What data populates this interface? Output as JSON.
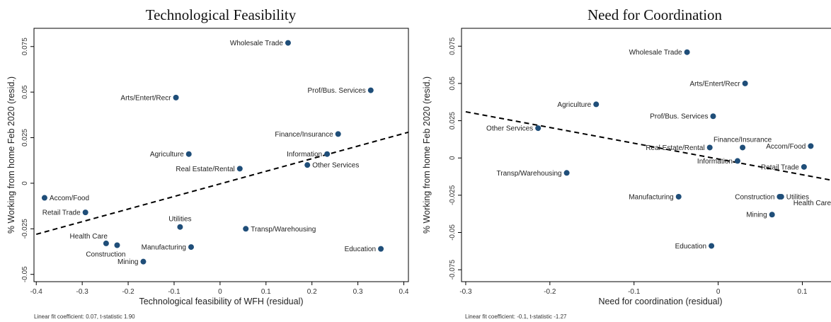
{
  "chart_data": [
    {
      "type": "scatter",
      "title": "Technological Feasibility",
      "xlabel": "Technological feasibility of WFH (residual)",
      "ylabel": "% Working from home Feb 2020 (resid.)",
      "xlim": [
        -0.405,
        0.41
      ],
      "ylim": [
        -0.054,
        0.085
      ],
      "xticks": [
        -0.4,
        -0.3,
        -0.2,
        -0.1,
        0,
        0.1,
        0.2,
        0.3,
        0.4
      ],
      "xtick_labels": [
        "-0.4",
        "-0.3",
        "-0.2",
        "-0.1",
        "0",
        "0.1",
        "0.2",
        "0.3",
        "0.4"
      ],
      "yticks": [
        -0.05,
        -0.025,
        0,
        0.025,
        0.05,
        0.075
      ],
      "ytick_labels": [
        "-0.05",
        "-0.025",
        "0",
        "0.025",
        "0.05",
        "0.075"
      ],
      "fit_line": {
        "x": [
          -0.4,
          0.41
        ],
        "y": [
          -0.028,
          0.028
        ]
      },
      "note": "Linear fit coefficient: 0.07, t-statistic 1.90",
      "points": [
        {
          "label": "Wholesale Trade",
          "x": 0.148,
          "y": 0.077,
          "pos": "left"
        },
        {
          "label": "Prof/Bus. Services",
          "x": 0.328,
          "y": 0.051,
          "pos": "left"
        },
        {
          "label": "Arts/Entert/Recr",
          "x": -0.096,
          "y": 0.047,
          "pos": "left"
        },
        {
          "label": "Finance/Insurance",
          "x": 0.257,
          "y": 0.027,
          "pos": "left"
        },
        {
          "label": "Agriculture",
          "x": -0.068,
          "y": 0.016,
          "pos": "left"
        },
        {
          "label": "Information",
          "x": 0.233,
          "y": 0.016,
          "pos": "left"
        },
        {
          "label": "Other Services",
          "x": 0.19,
          "y": 0.01,
          "pos": "right"
        },
        {
          "label": "Real Estate/Rental",
          "x": 0.043,
          "y": 0.008,
          "pos": "left"
        },
        {
          "label": "Accom/Food",
          "x": -0.382,
          "y": -0.008,
          "pos": "right"
        },
        {
          "label": "Retail Trade",
          "x": -0.293,
          "y": -0.016,
          "pos": "left"
        },
        {
          "label": "Utilities",
          "x": -0.087,
          "y": -0.024,
          "pos": "above"
        },
        {
          "label": "Transp/Warehousing",
          "x": 0.056,
          "y": -0.025,
          "pos": "right"
        },
        {
          "label": "Health Care",
          "x": -0.248,
          "y": -0.033,
          "pos": "above-left"
        },
        {
          "label": "Construction",
          "x": -0.224,
          "y": -0.034,
          "pos": "below-left"
        },
        {
          "label": "Manufacturing",
          "x": -0.063,
          "y": -0.035,
          "pos": "left"
        },
        {
          "label": "Education",
          "x": 0.35,
          "y": -0.036,
          "pos": "left"
        },
        {
          "label": "Mining",
          "x": -0.167,
          "y": -0.043,
          "pos": "left"
        }
      ]
    },
    {
      "type": "scatter",
      "title": "Need for Coordination",
      "xlabel": "Need for coordination (residual)",
      "ylabel": "% Working from home Feb 2020 (resid.)",
      "xlim": [
        -0.305,
        0.145
      ],
      "ylim": [
        -0.083,
        0.087
      ],
      "xticks": [
        -0.3,
        -0.2,
        -0.1,
        0,
        0.1
      ],
      "xtick_labels": [
        "-0.3",
        "-0.2",
        "-0.1",
        "0",
        "0.1"
      ],
      "yticks": [
        -0.075,
        -0.05,
        -0.025,
        0,
        0.025,
        0.05,
        0.075
      ],
      "ytick_labels": [
        "-0.075",
        "-0.05",
        "-0.025",
        "0",
        "0.025",
        "0.05",
        "0.075"
      ],
      "fit_line": {
        "x": [
          -0.3,
          0.145
        ],
        "y": [
          0.031,
          -0.016
        ]
      },
      "note": "Linear fit coefficient: -0.1, t-statistic -1.27",
      "points": [
        {
          "label": "Wholesale Trade",
          "x": -0.037,
          "y": 0.071,
          "pos": "left"
        },
        {
          "label": "Arts/Entert/Recr",
          "x": 0.032,
          "y": 0.05,
          "pos": "left"
        },
        {
          "label": "Agriculture",
          "x": -0.145,
          "y": 0.036,
          "pos": "left"
        },
        {
          "label": "Prof/Bus. Services",
          "x": -0.006,
          "y": 0.028,
          "pos": "left"
        },
        {
          "label": "Other Services",
          "x": -0.214,
          "y": 0.02,
          "pos": "left"
        },
        {
          "label": "Finance/Insurance",
          "x": 0.029,
          "y": 0.007,
          "pos": "above"
        },
        {
          "label": "Real Estate/Rental",
          "x": -0.01,
          "y": 0.007,
          "pos": "left"
        },
        {
          "label": "Accom/Food",
          "x": 0.11,
          "y": 0.008,
          "pos": "left"
        },
        {
          "label": "Information",
          "x": 0.023,
          "y": -0.002,
          "pos": "left"
        },
        {
          "label": "Retail Trade",
          "x": 0.102,
          "y": -0.006,
          "pos": "left"
        },
        {
          "label": "Transp/Warehousing",
          "x": -0.18,
          "y": -0.01,
          "pos": "left"
        },
        {
          "label": "Manufacturing",
          "x": -0.047,
          "y": -0.026,
          "pos": "left"
        },
        {
          "label": "Construction",
          "x": 0.073,
          "y": -0.026,
          "pos": "left"
        },
        {
          "label": "Utilities",
          "x": 0.075,
          "y": -0.026,
          "pos": "right"
        },
        {
          "label": "Health Care",
          "x": 0.14,
          "y": -0.03,
          "pos": "left"
        },
        {
          "label": "Mining",
          "x": 0.064,
          "y": -0.038,
          "pos": "left"
        },
        {
          "label": "Education",
          "x": -0.008,
          "y": -0.059,
          "pos": "left"
        }
      ]
    }
  ]
}
